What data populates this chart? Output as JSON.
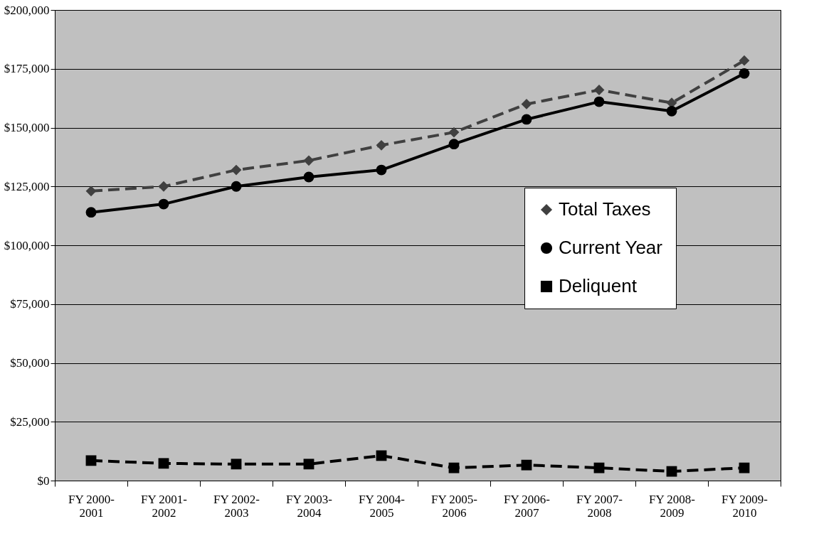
{
  "chart_data": {
    "type": "line",
    "categories": [
      "FY 2000-2001",
      "FY 2001-2002",
      "FY 2002-2003",
      "FY 2003-2004",
      "FY 2004-2005",
      "FY 2005-2006",
      "FY 2006-2007",
      "FY 2007-2008",
      "FY 2008-2009",
      "FY 2009-2010"
    ],
    "series": [
      {
        "name": "Total Taxes",
        "color": "#404040",
        "marker": "diamond",
        "line_style": "dashed",
        "values": [
          123000,
          125000,
          132000,
          136000,
          142500,
          148000,
          160000,
          166000,
          160500,
          178500
        ]
      },
      {
        "name": "Current Year",
        "color": "#000000",
        "marker": "circle",
        "line_style": "solid",
        "values": [
          114000,
          117500,
          125000,
          129000,
          132000,
          143000,
          153500,
          161000,
          157000,
          173000
        ]
      },
      {
        "name": "Deliquent",
        "color": "#000000",
        "marker": "square",
        "line_style": "dashed",
        "values": [
          8500,
          7300,
          7000,
          7000,
          10600,
          5400,
          6600,
          5400,
          3900,
          5400
        ]
      }
    ],
    "ylim": [
      0,
      200000
    ],
    "yticks": [
      {
        "value": 0,
        "label": "$0"
      },
      {
        "value": 25000,
        "label": "$25,000"
      },
      {
        "value": 50000,
        "label": "$50,000"
      },
      {
        "value": 75000,
        "label": "$75,000"
      },
      {
        "value": 100000,
        "label": "$100,000"
      },
      {
        "value": 125000,
        "label": "$125,000"
      },
      {
        "value": 150000,
        "label": "$150,000"
      },
      {
        "value": 175000,
        "label": "$175,000"
      },
      {
        "value": 200000,
        "label": "$200,000"
      }
    ],
    "grid": "y",
    "legend": "right"
  }
}
